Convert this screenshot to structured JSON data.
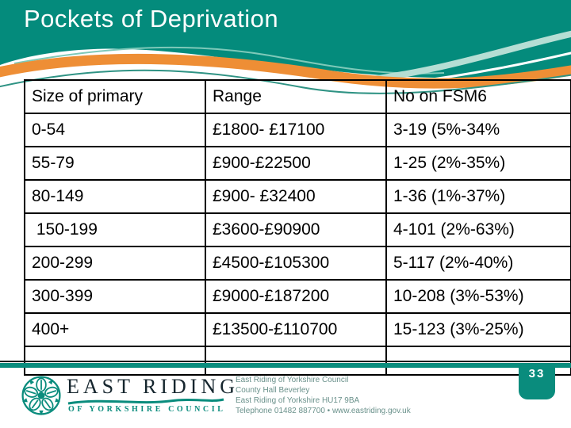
{
  "slide": {
    "title": "Pockets of Deprivation",
    "page_number": "33"
  },
  "table": {
    "columns": [
      "Size of primary",
      "Range",
      "No on FSM6"
    ],
    "rows": [
      [
        "0-54",
        "£1800- £17100",
        "3-19 (5%-34%"
      ],
      [
        "55-79",
        "£900-£22500",
        "1-25 (2%-35%)"
      ],
      [
        "80-149",
        "£900- £32400",
        "1-36 (1%-37%)"
      ],
      [
        " 150-199",
        "£3600-£90900",
        "4-101 (2%-63%)"
      ],
      [
        "200-299",
        "£4500-£105300",
        "5-117 (2%-40%)"
      ],
      [
        "300-399",
        "£9000-£187200",
        "10-208 (3%-53%)"
      ],
      [
        "400+",
        "£13500-£110700",
        "15-123 (3%-25%)"
      ],
      [
        "",
        "",
        ""
      ]
    ]
  },
  "footer": {
    "logo": {
      "name_line": "EAST RIDING",
      "sub_line": "OF YORKSHIRE COUNCIL"
    },
    "address_lines": [
      "East Riding of Yorkshire Council",
      "County Hall Beverley",
      "East Riding of Yorkshire HU17 9BA",
      "Telephone 01482 887700 • www.eastriding.gov.uk"
    ]
  },
  "colors": {
    "teal": "#048b7c",
    "orange": "#ee8e35",
    "mint": "#7ec9b9",
    "pale_mint": "#b5ded4",
    "footer_text": "#6a918b"
  }
}
